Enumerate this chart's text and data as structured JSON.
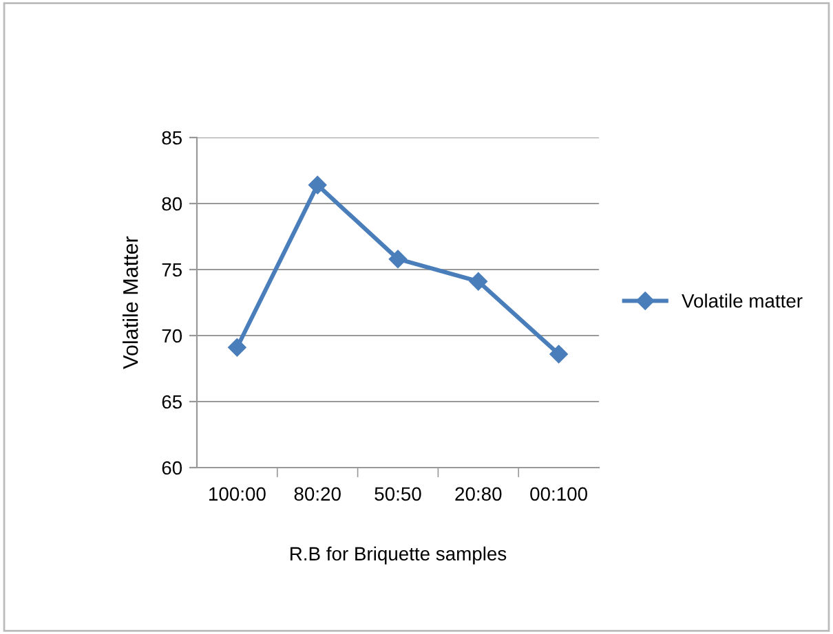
{
  "chart_data": {
    "type": "line",
    "xlabel": "R.B for Briquette samples",
    "ylabel": "Volatile Matter",
    "categories": [
      "100:00",
      "80:20",
      "50:50",
      "20:80",
      "00:100"
    ],
    "series": [
      {
        "name": "Volatile matter",
        "color": "#4a7ebb",
        "values": [
          69.1,
          81.4,
          75.8,
          74.1,
          68.6
        ]
      }
    ],
    "ylim": [
      60,
      85
    ],
    "yticks": [
      60,
      65,
      70,
      75,
      80,
      85
    ],
    "grid": "y",
    "legend": "right",
    "marker": "diamond",
    "line_style": "solid"
  }
}
